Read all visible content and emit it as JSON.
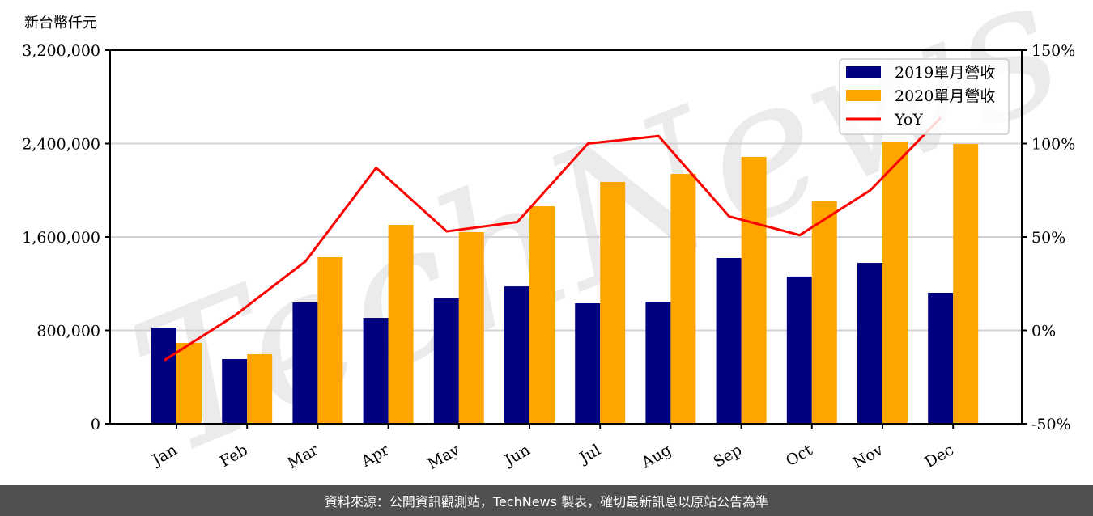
{
  "chart_data": {
    "type": "bar",
    "title": "",
    "ylabel": "新台幣仟元",
    "xlabel": "",
    "categories": [
      "Jan",
      "Feb",
      "Mar",
      "Apr",
      "May",
      "Jun",
      "Jul",
      "Aug",
      "Sep",
      "Oct",
      "Nov",
      "Dec"
    ],
    "series": [
      {
        "name": "2019單月營收",
        "type": "bar",
        "axis": "left",
        "color": "#000080",
        "values": [
          824000,
          554000,
          1039000,
          907000,
          1074000,
          1177000,
          1032000,
          1046000,
          1420000,
          1261000,
          1378000,
          1122000
        ]
      },
      {
        "name": "2020單月營收",
        "type": "bar",
        "axis": "left",
        "color": "#FFA500",
        "values": [
          693000,
          596000,
          1427000,
          1704000,
          1642000,
          1863000,
          2071000,
          2140000,
          2286000,
          1905000,
          2417000,
          2396000
        ]
      },
      {
        "name": "YoY",
        "type": "line",
        "axis": "right",
        "color": "#FF0000",
        "values": [
          -16,
          8,
          37,
          87,
          53,
          58,
          100,
          104,
          61,
          51,
          75,
          114
        ]
      }
    ],
    "ylim": [
      0,
      3200000
    ],
    "yticks": [
      "0",
      "800,000",
      "1,600,000",
      "2,400,000",
      "3,200,000"
    ],
    "ytick_values": [
      0,
      800000,
      1600000,
      2400000,
      3200000
    ],
    "y2lim": [
      -50,
      150
    ],
    "y2ticks": [
      "-50%",
      "0%",
      "50%",
      "100%",
      "150%"
    ],
    "y2tick_values": [
      -50,
      0,
      50,
      100,
      150
    ],
    "grid": true,
    "legend_position": "upper right",
    "watermark": "TechNews"
  },
  "footer": {
    "text": "資料來源：公開資訊觀測站，TechNews 製表，確切最新訊息以原站公告為準"
  }
}
